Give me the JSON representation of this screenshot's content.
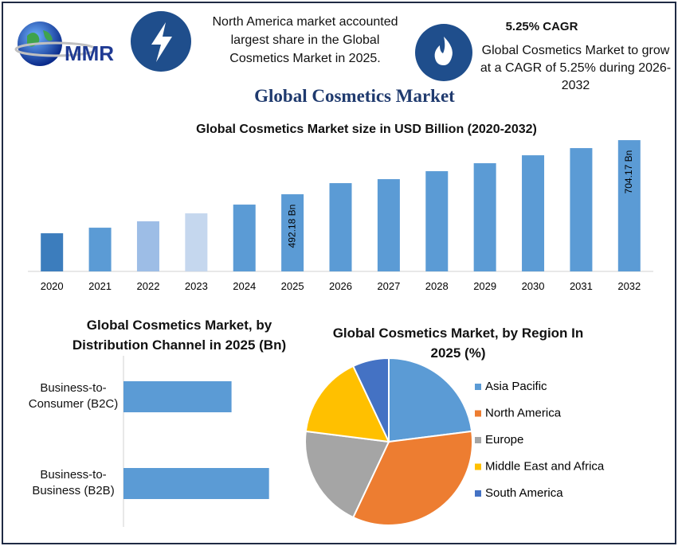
{
  "header": {
    "logo": "MMR",
    "highlight_1": "North America market accounted largest share in the Global Cosmetics Market in 2025.",
    "highlight_2_title": "5.25% CAGR",
    "highlight_2": "Global Cosmetics Market to grow at a CAGR of 5.25% during 2026-2032",
    "title": "Global Cosmetics Market"
  },
  "chart_data": [
    {
      "type": "bar",
      "title": "Global Cosmetics Market size in USD Billion (2020-2032)",
      "categories": [
        "2020",
        "2021",
        "2022",
        "2023",
        "2024",
        "2025",
        "2026",
        "2027",
        "2028",
        "2029",
        "2030",
        "2031",
        "2032"
      ],
      "values": [
        339.4,
        361.2,
        386.2,
        417.4,
        451.7,
        492.18,
        535.8,
        551.4,
        582.6,
        613.8,
        644.9,
        673.0,
        704.17
      ],
      "value_labels": [
        null,
        null,
        null,
        null,
        null,
        "492.18 Bn",
        null,
        null,
        null,
        null,
        null,
        null,
        "704.17 Bn"
      ],
      "colors": [
        "#3c7dbd",
        "#5b9bd5",
        "#9dbde6",
        "#c5d7ee",
        "#5b9bd5",
        "#5b9bd5",
        "#5b9bd5",
        "#5b9bd5",
        "#5b9bd5",
        "#5b9bd5",
        "#5b9bd5",
        "#5b9bd5",
        "#5b9bd5"
      ],
      "ylim": [
        190,
        720
      ]
    },
    {
      "type": "bar",
      "orientation": "horizontal",
      "title": "Global Cosmetics Market, by Distribution Channel in 2025 (Bn)",
      "categories": [
        "Business-to-Consumer (B2C)",
        "Business-to-Business (B2B)"
      ],
      "values": [
        209.7,
        282.5
      ],
      "color": "#5b9bd5",
      "xlim": [
        0,
        300
      ]
    },
    {
      "type": "pie",
      "title": "Global Cosmetics Market, by Region In 2025 (%)",
      "categories": [
        "Asia Pacific",
        "North America",
        "Europe",
        "Middle East and Africa",
        "South America"
      ],
      "values": [
        23,
        34,
        20,
        16,
        7
      ],
      "colors": [
        "#5b9bd5",
        "#ed7d31",
        "#a5a5a5",
        "#ffc000",
        "#4472c4"
      ],
      "legend": "right"
    }
  ]
}
